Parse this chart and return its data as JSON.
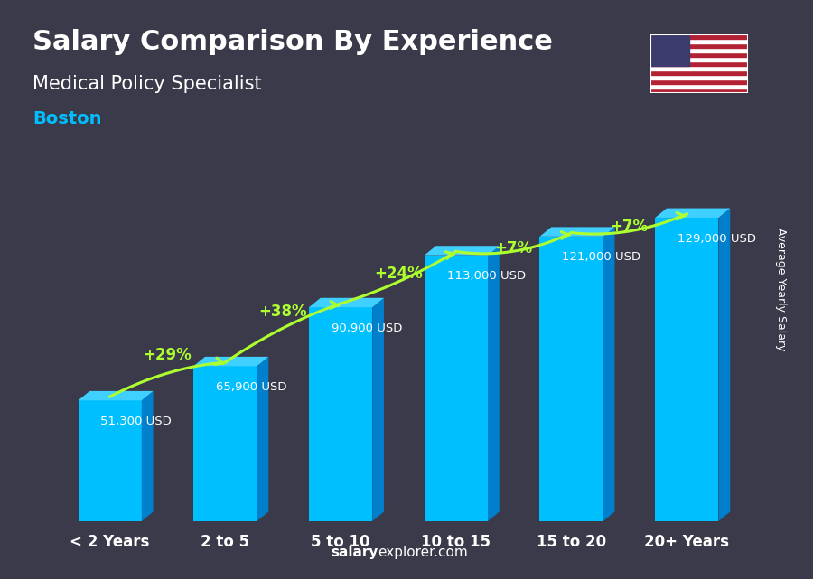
{
  "title": "Salary Comparison By Experience",
  "subtitle": "Medical Policy Specialist",
  "city": "Boston",
  "categories": [
    "< 2 Years",
    "2 to 5",
    "5 to 10",
    "10 to 15",
    "15 to 20",
    "20+ Years"
  ],
  "values": [
    51300,
    65900,
    90900,
    113000,
    121000,
    129000
  ],
  "labels": [
    "51,300 USD",
    "65,900 USD",
    "90,900 USD",
    "113,000 USD",
    "121,000 USD",
    "129,000 USD"
  ],
  "pct_labels": [
    "+29%",
    "+38%",
    "+24%",
    "+7%",
    "+7%"
  ],
  "bar_color_face": "#00BFFF",
  "bar_color_side": "#0080CC",
  "bar_color_top": "#40D0FF",
  "background_color": "#1a1a2e",
  "title_color": "#FFFFFF",
  "subtitle_color": "#FFFFFF",
  "city_color": "#00BFFF",
  "label_color": "#FFFFFF",
  "pct_color": "#ADFF2F",
  "axis_label_color": "#FFFFFF",
  "footer_color": "#FFFFFF",
  "footer_bold": "salary",
  "footer_normal": "explorer.com",
  "ylabel": "Average Yearly Salary",
  "bar_width": 0.55,
  "ylim": [
    0,
    160000
  ]
}
